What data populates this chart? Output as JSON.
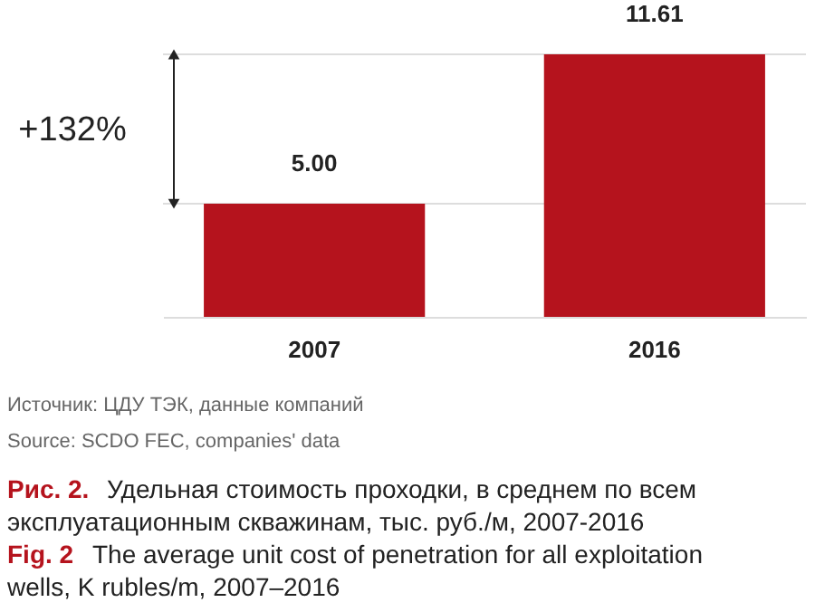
{
  "chart_data": {
    "type": "bar",
    "categories": [
      "2007",
      "2016"
    ],
    "values": [
      5.0,
      11.61
    ],
    "color": "#b5131d",
    "data_labels": true,
    "value_labels": [
      "5.00",
      "11.61"
    ],
    "ref_lines": [
      {
        "axis": "y",
        "value": 5.0,
        "label": null,
        "color": "#dddddd"
      },
      {
        "axis": "y",
        "value": 11.61,
        "label": null,
        "color": "#dddddd"
      }
    ],
    "annotations": [
      "+132%",
      "Источник: ЦДУ ТЭК, данные компаний",
      "Source: SCDO FEC, companies' data",
      "Рис. 2. Удельная стоимость проходки, в среднем по всем эксплуатационным скважинам, тыс. руб./м, 2007-2016",
      "Fig. 2 The average unit cost of penetration for all exploitation wells, K rubles/m, 2007–2016"
    ]
  }
}
